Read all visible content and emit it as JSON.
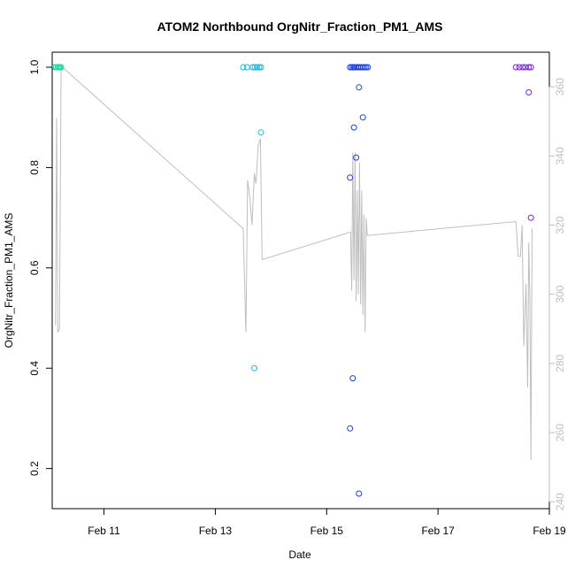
{
  "chart_data": {
    "type": "scatter",
    "title": "ATOM2 Northbound OrgNitr_Fraction_PM1_AMS",
    "xlabel": "Date",
    "ylabel": "OrgNitr_Fraction_PM1_AMS",
    "x_ticks": [
      {
        "day": 11,
        "label": "Feb 11"
      },
      {
        "day": 13,
        "label": "Feb 13"
      },
      {
        "day": 15,
        "label": "Feb 15"
      },
      {
        "day": 17,
        "label": "Feb 17"
      },
      {
        "day": 19,
        "label": "Feb 19"
      }
    ],
    "xlim": [
      10.07,
      19.0
    ],
    "ylim": [
      0.12,
      1.03
    ],
    "y_ticks": [
      0.2,
      0.4,
      0.6,
      0.8,
      1.0
    ],
    "y2lim": [
      238,
      370
    ],
    "y2_ticks": [
      240,
      260,
      280,
      300,
      320,
      340,
      360
    ],
    "colors": {
      "secondary_line": "#bebebe",
      "right_axis": "#bebebe"
    },
    "series": [
      {
        "values": [
          [
            10.12,
            1.0
          ],
          [
            10.14,
            1.0
          ],
          [
            10.17,
            1.0
          ],
          [
            10.19,
            1.0
          ],
          [
            10.21,
            1.0
          ],
          [
            10.23,
            1.0
          ]
        ],
        "color": "#1ed9a6"
      },
      {
        "values": [
          [
            13.5,
            1.0
          ],
          [
            13.57,
            1.0
          ],
          [
            13.67,
            1.0
          ],
          [
            13.71,
            1.0
          ],
          [
            13.75,
            1.0
          ],
          [
            13.79,
            1.0
          ],
          [
            13.82,
            1.0
          ],
          [
            13.7,
            0.4
          ],
          [
            13.82,
            0.87
          ]
        ],
        "color": "#19b5e6"
      },
      {
        "values": [
          [
            15.42,
            1.0
          ],
          [
            15.45,
            1.0
          ],
          [
            15.48,
            1.0
          ],
          [
            15.5,
            1.0
          ],
          [
            15.53,
            1.0
          ],
          [
            15.56,
            1.0
          ],
          [
            15.59,
            1.0
          ],
          [
            15.62,
            1.0
          ],
          [
            15.65,
            1.0
          ],
          [
            15.68,
            1.0
          ],
          [
            15.71,
            1.0
          ],
          [
            15.74,
            1.0
          ],
          [
            15.58,
            0.96
          ],
          [
            15.65,
            0.9
          ],
          [
            15.49,
            0.88
          ],
          [
            15.53,
            0.82
          ],
          [
            15.42,
            0.78
          ],
          [
            15.47,
            0.38
          ],
          [
            15.42,
            0.28
          ],
          [
            15.58,
            0.15
          ]
        ],
        "color": "#1a3fe6"
      },
      {
        "values": [
          [
            18.4,
            1.0
          ],
          [
            18.46,
            1.0
          ],
          [
            18.52,
            1.0
          ],
          [
            18.57,
            1.0
          ],
          [
            18.63,
            1.0
          ],
          [
            18.67,
            1.0
          ],
          [
            18.63,
            0.95
          ],
          [
            18.67,
            0.7
          ]
        ],
        "color": "#7b1fe0"
      }
    ],
    "secondary_series": {
      "values": [
        [
          10.13,
          291
        ],
        [
          10.15,
          351
        ],
        [
          10.17,
          289
        ],
        [
          10.2,
          290
        ],
        [
          10.23,
          366
        ],
        [
          13.5,
          319
        ],
        [
          13.55,
          289
        ],
        [
          13.58,
          333
        ],
        [
          13.62,
          328
        ],
        [
          13.66,
          320
        ],
        [
          13.7,
          335
        ],
        [
          13.73,
          332
        ],
        [
          13.77,
          343
        ],
        [
          13.81,
          345
        ],
        [
          13.84,
          310
        ],
        [
          15.43,
          318
        ],
        [
          15.45,
          301
        ],
        [
          15.47,
          341
        ],
        [
          15.49,
          304
        ],
        [
          15.51,
          341
        ],
        [
          15.53,
          298
        ],
        [
          15.55,
          330
        ],
        [
          15.57,
          300
        ],
        [
          15.59,
          338
        ],
        [
          15.61,
          297
        ],
        [
          15.63,
          330
        ],
        [
          15.65,
          294
        ],
        [
          15.67,
          323
        ],
        [
          15.69,
          289
        ],
        [
          15.71,
          322
        ],
        [
          15.73,
          317
        ],
        [
          18.4,
          321
        ],
        [
          18.44,
          311
        ],
        [
          18.48,
          311
        ],
        [
          18.51,
          320
        ],
        [
          18.54,
          285
        ],
        [
          18.58,
          303
        ],
        [
          18.61,
          273
        ],
        [
          18.63,
          315
        ],
        [
          18.65,
          298
        ],
        [
          18.67,
          252
        ],
        [
          18.69,
          319
        ]
      ]
    }
  }
}
